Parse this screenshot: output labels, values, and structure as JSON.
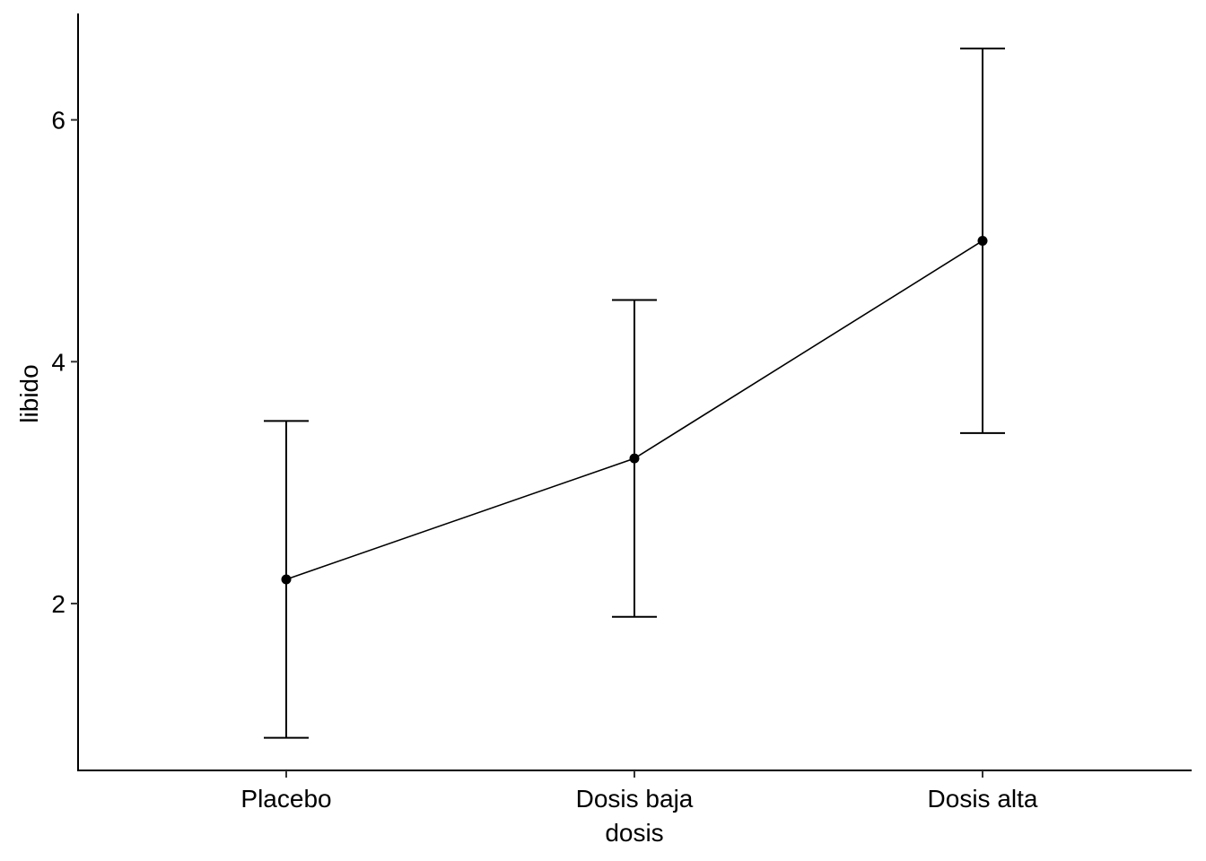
{
  "chart_data": {
    "type": "line",
    "title": "",
    "xlabel": "dosis",
    "ylabel": "libido",
    "categories": [
      "Placebo",
      "Dosis baja",
      "Dosis alta"
    ],
    "series": [
      {
        "values": [
          2.2,
          3.2,
          5.0
        ],
        "error_low": [
          0.89,
          1.89,
          3.41
        ],
        "error_high": [
          3.51,
          4.51,
          6.59
        ]
      }
    ],
    "ylim": [
      0.62,
      6.88
    ],
    "yticks": [
      2,
      4,
      6
    ],
    "grid": false,
    "legend": "none"
  }
}
